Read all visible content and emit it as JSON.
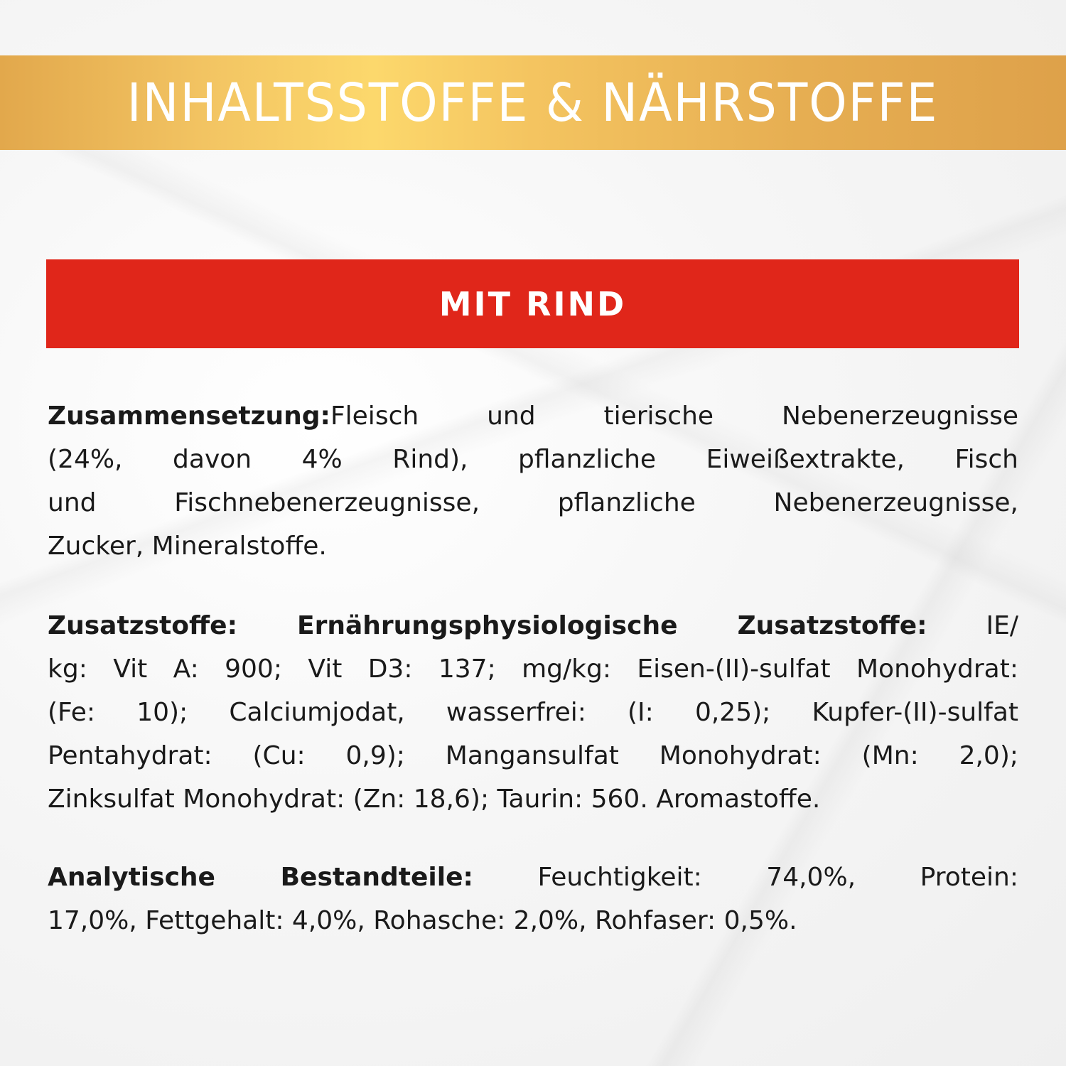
{
  "header": {
    "title": "INHALTSSTOFFE & NÄHRSTOFFE",
    "accent_color": "#f3c563"
  },
  "variant": {
    "label": "MIT RIND",
    "color": "#e0261a"
  },
  "sections": [
    {
      "label": "Zusammensetzung:",
      "lines": [
        "Fleisch und tierische Nebenerzeugnisse",
        "(24%, davon 4% Rind), pflanzliche Eiweißextrakte, Fisch",
        "und Fischnebenerzeugnisse, pflanzliche Nebenerzeugnisse,",
        "Zucker, Mineralstoffe."
      ]
    },
    {
      "label": "Zusatzstoffe: Ernährungsphysiologische Zusatzstoffe:",
      "lines": [
        " IE/",
        "kg: Vit A: 900; Vit D3: 137; mg/kg: Eisen-(II)-sulfat Monohydrat:",
        "(Fe: 10); Calciumjodat, wasserfrei: (I: 0,25); Kupfer-(II)-sulfat",
        "Pentahydrat: (Cu: 0,9); Mangansulfat Monohydrat: (Mn: 2,0);",
        "Zinksulfat Monohydrat: (Zn: 18,6); Taurin: 560. Aromastoffe."
      ]
    },
    {
      "label": "Analytische Bestandteile:",
      "lines": [
        " Feuchtigkeit: 74,0%, Protein:",
        "17,0%, Fettgehalt: 4,0%, Rohasche: 2,0%, Rohfaser: 0,5%."
      ]
    }
  ]
}
